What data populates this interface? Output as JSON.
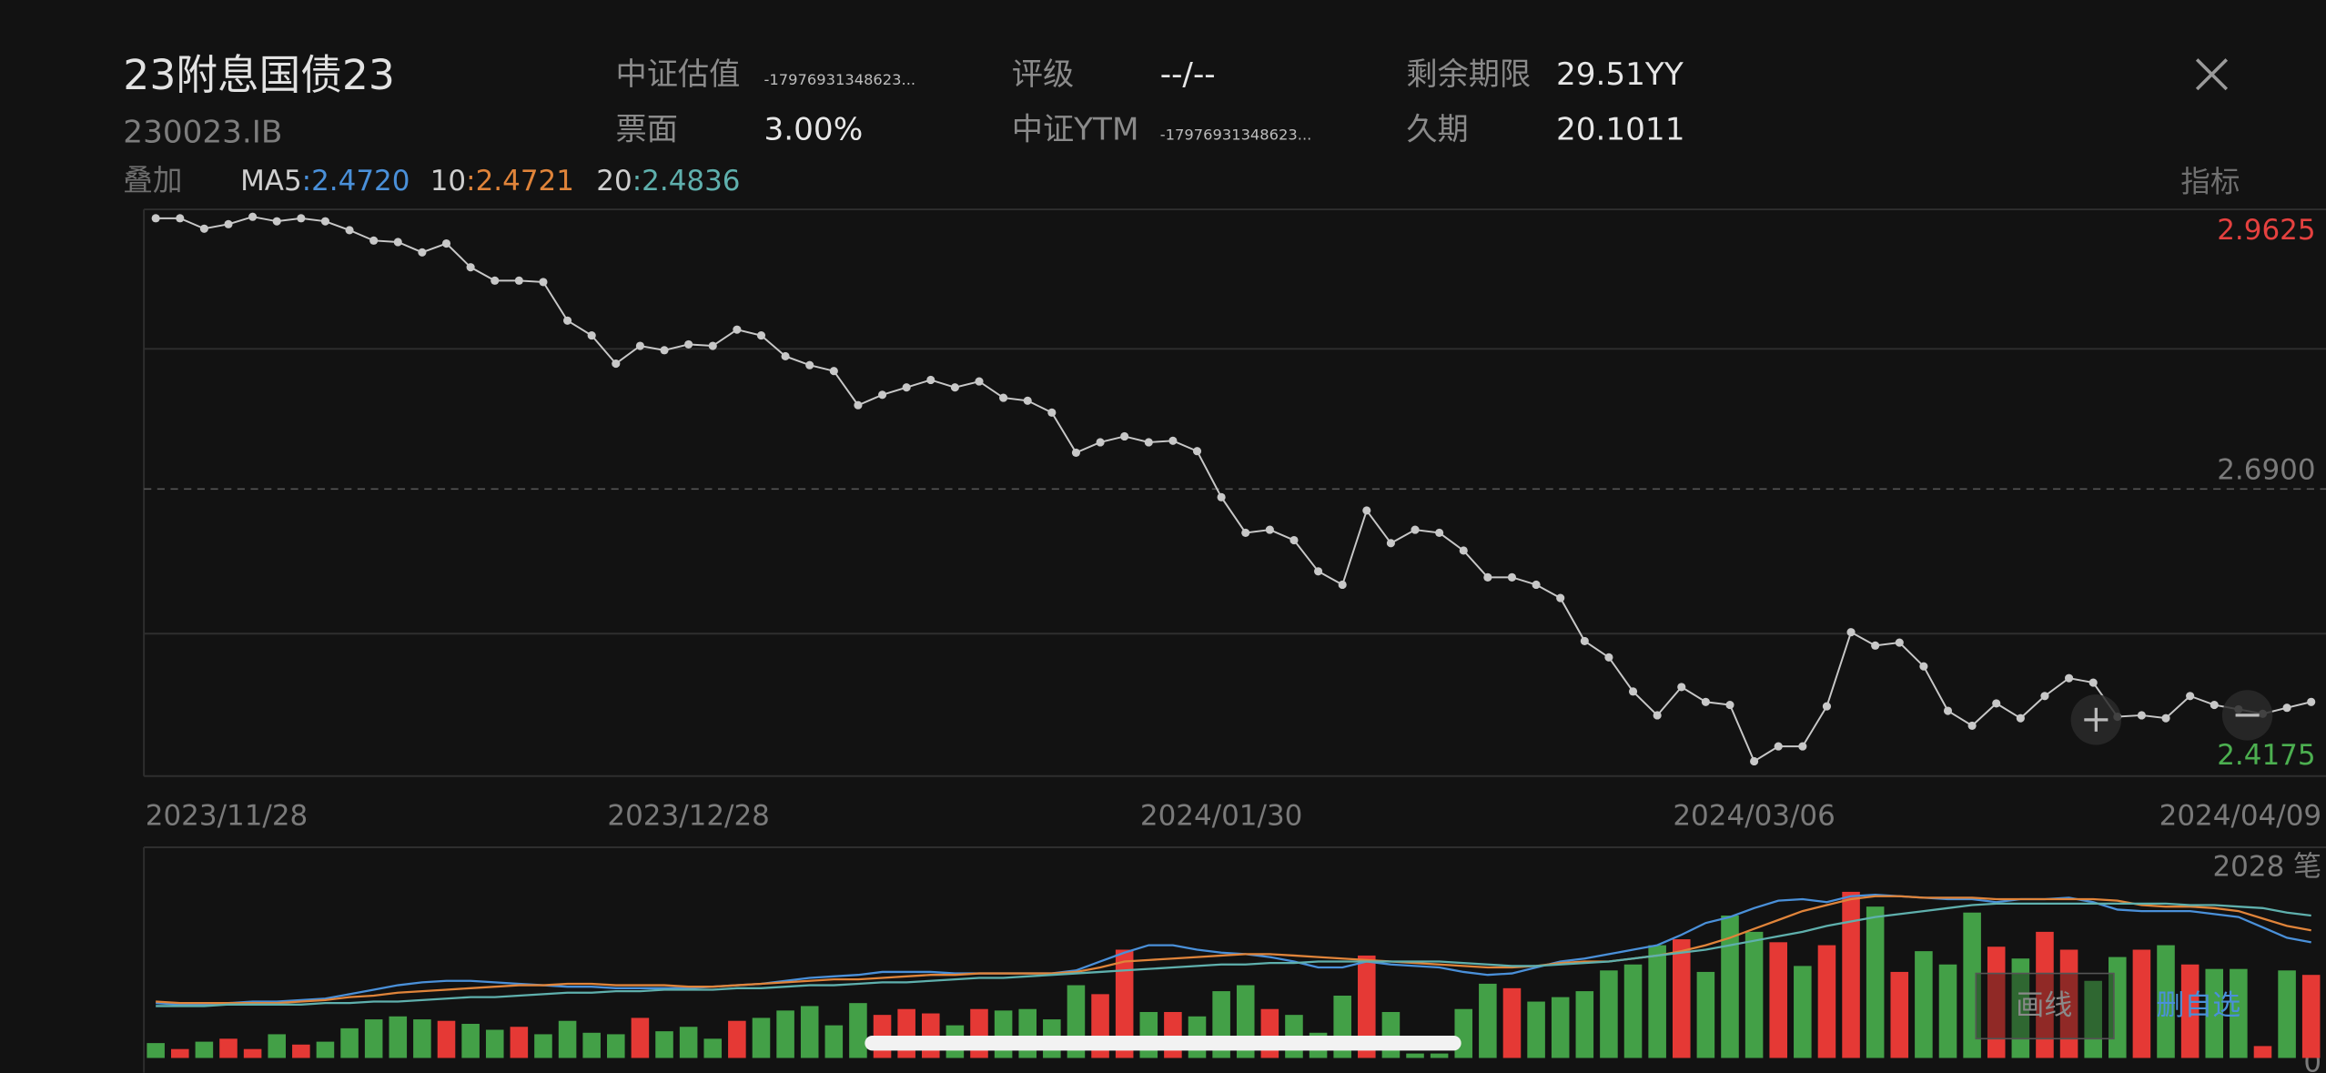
{
  "header": {
    "title": "23附息国债23",
    "code": "230023.IB",
    "fields": [
      {
        "label": "中证估值",
        "value": "-17976931348623..."
      },
      {
        "label": "票面",
        "value": "3.00%"
      },
      {
        "label": "评级",
        "value": "--/--"
      },
      {
        "label": "中证YTM",
        "value": "-17976931348623..."
      },
      {
        "label": "剩余期限",
        "value": "29.51YY"
      },
      {
        "label": "久期",
        "value": "20.1011"
      }
    ]
  },
  "toolbar": {
    "overlay": "叠加",
    "indicator": "指标",
    "ma": [
      {
        "name": "MA5",
        "value": ":2.4720",
        "color": "#4a90d9"
      },
      {
        "name": "10",
        "value": ":2.4721",
        "color": "#e0843a"
      },
      {
        "name": "20",
        "value": ":2.4836",
        "color": "#5fb0ad"
      }
    ]
  },
  "controls": {
    "draw": "画线",
    "remove": "删自选"
  },
  "chart_data": [
    {
      "type": "line",
      "color": "#c8c8c8",
      "categories": [
        "2023/11/28",
        null,
        null,
        null,
        null,
        null,
        null,
        null,
        null,
        null,
        null,
        null,
        null,
        null,
        null,
        null,
        null,
        null,
        null,
        null,
        null,
        null,
        "2023/12/28",
        null,
        null,
        null,
        null,
        null,
        null,
        null,
        null,
        null,
        null,
        null,
        null,
        null,
        null,
        null,
        null,
        null,
        null,
        null,
        null,
        null,
        "2024/01/30",
        null,
        null,
        null,
        null,
        null,
        null,
        null,
        null,
        null,
        null,
        null,
        null,
        null,
        null,
        null,
        null,
        null,
        null,
        null,
        null,
        null,
        "2024/03/06",
        null,
        null,
        null,
        null,
        null,
        null,
        null,
        null,
        null,
        null,
        null,
        null,
        null,
        null,
        null,
        null,
        null,
        null,
        null,
        null,
        null,
        null,
        "2024/04/09"
      ],
      "values": [
        2.961,
        2.961,
        2.9506,
        2.9551,
        2.9625,
        2.958,
        2.961,
        2.958,
        2.9491,
        2.9387,
        2.9372,
        2.9269,
        2.9358,
        2.912,
        2.8986,
        2.8986,
        2.8972,
        2.8586,
        2.8437,
        2.8155,
        2.8333,
        2.8289,
        2.8348,
        2.8333,
        2.8496,
        2.8437,
        2.8229,
        2.814,
        2.8081,
        2.7739,
        2.7843,
        2.7917,
        2.7992,
        2.7917,
        2.7977,
        2.7813,
        2.7784,
        2.7665,
        2.7264,
        2.7368,
        2.7427,
        2.7368,
        2.7383,
        2.7279,
        2.6818,
        2.6462,
        2.6492,
        2.6388,
        2.6076,
        2.5942,
        2.6685,
        2.6358,
        2.6492,
        2.6462,
        2.6284,
        2.6016,
        2.6016,
        2.5942,
        2.5809,
        2.5378,
        2.5215,
        2.4873,
        2.4635,
        2.4918,
        2.4769,
        2.4739,
        2.4175,
        2.4324,
        2.4324,
        2.4725,
        2.5467,
        2.5333,
        2.5363,
        2.5125,
        2.468,
        2.4531,
        2.4754,
        2.4606,
        2.4828,
        2.5007,
        2.4962,
        2.4621,
        2.4635,
        2.4606,
        2.4828,
        2.4739,
        2.4695,
        2.465,
        2.471,
        2.4769
      ],
      "ylim": [
        2.4175,
        2.9625
      ],
      "yticks": [
        2.4175,
        {
          "value": 2.69,
          "label": "2.6900"
        },
        2.9625
      ]
    },
    {
      "type": "bar",
      "values": [
        180,
        108,
        197,
        233,
        108,
        287,
        162,
        197,
        359,
        467,
        503,
        467,
        449,
        413,
        341,
        377,
        287,
        449,
        305,
        287,
        485,
        323,
        377,
        233,
        449,
        485,
        574,
        628,
        395,
        664,
        521,
        592,
        539,
        395,
        592,
        574,
        592,
        467,
        880,
        772,
        1310,
        556,
        556,
        503,
        808,
        880,
        592,
        521,
        305,
        754,
        1239,
        556,
        54,
        54,
        592,
        898,
        844,
        682,
        736,
        808,
        1059,
        1131,
        1364,
        1436,
        1041,
        1723,
        1526,
        1400,
        1113,
        1364,
        2010,
        1831,
        1041,
        1292,
        1131,
        1759,
        1346,
        1203,
        1526,
        1310,
        933,
        1221,
        1310,
        1364,
        1131,
        1077,
        1077,
        144,
        1059,
        1005
      ],
      "colors": [
        "#43a047",
        "#e53935",
        "#43a047",
        "#e53935",
        "#e53935",
        "#43a047",
        "#e53935",
        "#43a047",
        "#43a047",
        "#43a047",
        "#43a047",
        "#43a047",
        "#e53935",
        "#43a047",
        "#43a047",
        "#e53935",
        "#43a047",
        "#43a047",
        "#43a047",
        "#43a047",
        "#e53935",
        "#43a047",
        "#43a047",
        "#43a047",
        "#e53935",
        "#43a047",
        "#43a047",
        "#43a047",
        "#43a047",
        "#43a047",
        "#e53935",
        "#e53935",
        "#e53935",
        "#43a047",
        "#e53935",
        "#43a047",
        "#43a047",
        "#43a047",
        "#43a047",
        "#e53935",
        "#e53935",
        "#43a047",
        "#e53935",
        "#43a047",
        "#43a047",
        "#43a047",
        "#e53935",
        "#43a047",
        "#43a047",
        "#43a047",
        "#e53935",
        "#43a047",
        "#43a047",
        "#43a047",
        "#43a047",
        "#43a047",
        "#e53935",
        "#43a047",
        "#43a047",
        "#43a047",
        "#43a047",
        "#43a047",
        "#43a047",
        "#e53935",
        "#43a047",
        "#43a047",
        "#43a047",
        "#e53935",
        "#43a047",
        "#e53935",
        "#e53935",
        "#43a047",
        "#e53935",
        "#43a047",
        "#43a047",
        "#43a047",
        "#e53935",
        "#43a047",
        "#e53935",
        "#e53935",
        "#43a047",
        "#43a047",
        "#e53935",
        "#43a047",
        "#e53935",
        "#43a047",
        "#43a047",
        "#e53935",
        "#43a047",
        "#e53935"
      ],
      "lines": [
        {
          "color": "#4a90d9",
          "values": [
            664,
            646,
            646,
            664,
            682,
            682,
            700,
            718,
            772,
            826,
            880,
            915,
            933,
            933,
            915,
            897,
            880,
            862,
            862,
            844,
            844,
            844,
            844,
            862,
            880,
            897,
            933,
            969,
            987,
            1005,
            1041,
            1041,
            1041,
            1023,
            1023,
            1023,
            1023,
            1023,
            1059,
            1167,
            1274,
            1364,
            1364,
            1310,
            1274,
            1256,
            1221,
            1167,
            1095,
            1095,
            1167,
            1131,
            1113,
            1095,
            1041,
            1005,
            1023,
            1095,
            1167,
            1203,
            1256,
            1310,
            1364,
            1490,
            1633,
            1705,
            1813,
            1903,
            1921,
            1885,
            1957,
            1975,
            1957,
            1939,
            1921,
            1921,
            1885,
            1921,
            1921,
            1939,
            1885,
            1795,
            1777,
            1777,
            1777,
            1741,
            1705,
            1580,
            1454,
            1400
          ]
        },
        {
          "color": "#e0843a",
          "values": [
            682,
            664,
            664,
            664,
            664,
            664,
            682,
            700,
            736,
            754,
            790,
            808,
            826,
            844,
            862,
            880,
            880,
            897,
            897,
            880,
            880,
            880,
            862,
            862,
            880,
            897,
            915,
            933,
            951,
            951,
            969,
            987,
            1005,
            1005,
            1023,
            1023,
            1023,
            1023,
            1041,
            1095,
            1167,
            1185,
            1203,
            1221,
            1239,
            1256,
            1256,
            1239,
            1221,
            1203,
            1185,
            1167,
            1149,
            1131,
            1113,
            1095,
            1095,
            1113,
            1149,
            1167,
            1167,
            1203,
            1239,
            1292,
            1364,
            1454,
            1562,
            1669,
            1777,
            1849,
            1921,
            1957,
            1957,
            1939,
            1939,
            1939,
            1921,
            1921,
            1921,
            1921,
            1921,
            1903,
            1849,
            1831,
            1831,
            1813,
            1777,
            1687,
            1598,
            1544
          ]
        },
        {
          "color": "#5fb0ad",
          "values": [
            628,
            628,
            628,
            646,
            646,
            646,
            646,
            664,
            664,
            682,
            682,
            700,
            718,
            736,
            736,
            754,
            772,
            790,
            790,
            808,
            808,
            826,
            826,
            826,
            844,
            844,
            862,
            880,
            880,
            897,
            915,
            915,
            933,
            951,
            969,
            969,
            987,
            1005,
            1023,
            1041,
            1059,
            1077,
            1095,
            1113,
            1131,
            1131,
            1149,
            1149,
            1167,
            1167,
            1167,
            1167,
            1167,
            1167,
            1149,
            1131,
            1113,
            1113,
            1131,
            1149,
            1167,
            1203,
            1239,
            1274,
            1310,
            1364,
            1418,
            1472,
            1526,
            1598,
            1651,
            1705,
            1741,
            1777,
            1813,
            1849,
            1867,
            1867,
            1867,
            1867,
            1867,
            1867,
            1867,
            1867,
            1849,
            1849,
            1831,
            1813,
            1759,
            1723
          ]
        }
      ],
      "ylim": [
        0,
        2028
      ],
      "yticks": [
        0,
        {
          "value": 2028,
          "label": "2028 笔"
        }
      ]
    }
  ]
}
